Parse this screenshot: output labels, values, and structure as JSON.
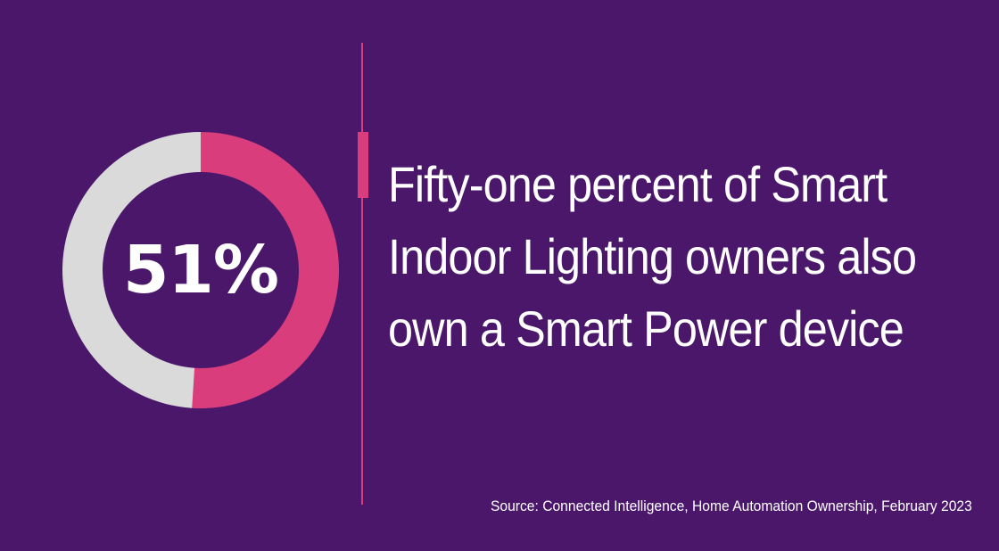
{
  "colors": {
    "background": "#4a176b",
    "accent": "#d93d7b",
    "remainder": "#dadada",
    "text": "#ffffff"
  },
  "chart_data": {
    "type": "pie",
    "title": "",
    "center_label": "51%",
    "slices": [
      {
        "label": "",
        "value": 51,
        "color": "#d93d7b"
      },
      {
        "label": "",
        "value": 49,
        "color": "#dadada"
      }
    ]
  },
  "headline": {
    "text": "Fifty-one percent of Smart Indoor Lighting owners also own a Smart Power device"
  },
  "source": {
    "text": "Source: Connected Intelligence, Home Automation Ownership, February 2023"
  }
}
